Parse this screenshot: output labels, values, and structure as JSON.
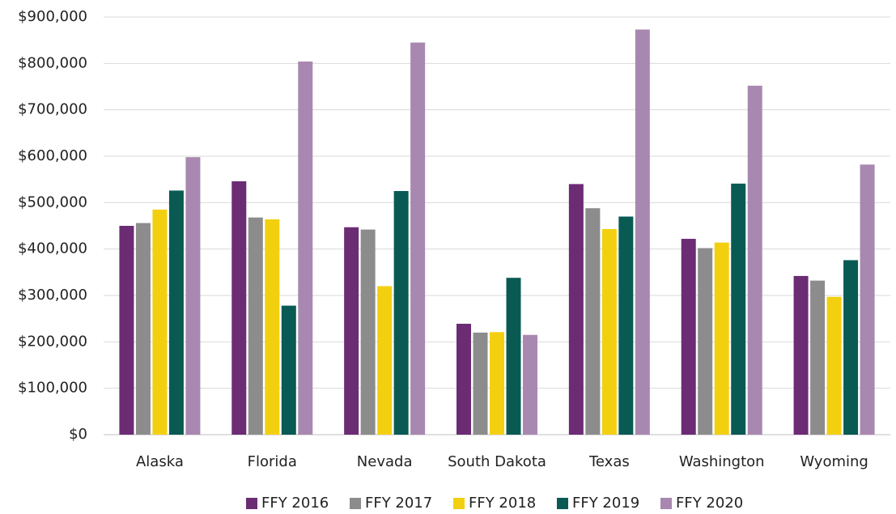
{
  "chart_data": {
    "type": "bar",
    "categories": [
      "Alaska",
      "Florida",
      "Nevada",
      "South Dakota",
      "Texas",
      "Washington",
      "Wyoming"
    ],
    "series": [
      {
        "name": "FFY 2016",
        "color": "#6b2c74",
        "values": [
          450000,
          546000,
          447000,
          239000,
          540000,
          422000,
          342000
        ]
      },
      {
        "name": "FFY 2017",
        "color": "#8c8c8c",
        "values": [
          456000,
          468000,
          442000,
          220000,
          488000,
          402000,
          332000
        ]
      },
      {
        "name": "FFY 2018",
        "color": "#f2d00f",
        "values": [
          485000,
          464000,
          320000,
          221000,
          443000,
          414000,
          297000
        ]
      },
      {
        "name": "FFY 2019",
        "color": "#0a5a54",
        "values": [
          526000,
          278000,
          525000,
          338000,
          470000,
          541000,
          376000
        ]
      },
      {
        "name": "FFY 2020",
        "color": "#a888b0",
        "values": [
          598000,
          804000,
          845000,
          215000,
          873000,
          752000,
          582000
        ]
      }
    ],
    "ylim": [
      0,
      900000
    ],
    "yticks": [
      {
        "value": 0,
        "label": "$0"
      },
      {
        "value": 100000,
        "label": "$100,000"
      },
      {
        "value": 200000,
        "label": "$200,000"
      },
      {
        "value": 300000,
        "label": "$300,000"
      },
      {
        "value": 400000,
        "label": "$400,000"
      },
      {
        "value": 500000,
        "label": "$500,000"
      },
      {
        "value": 600000,
        "label": "$600,000"
      },
      {
        "value": 700000,
        "label": "$700,000"
      },
      {
        "value": 800000,
        "label": "$800,000"
      },
      {
        "value": 900000,
        "label": "$900,000"
      }
    ],
    "grid": true,
    "legend": "bottom"
  }
}
